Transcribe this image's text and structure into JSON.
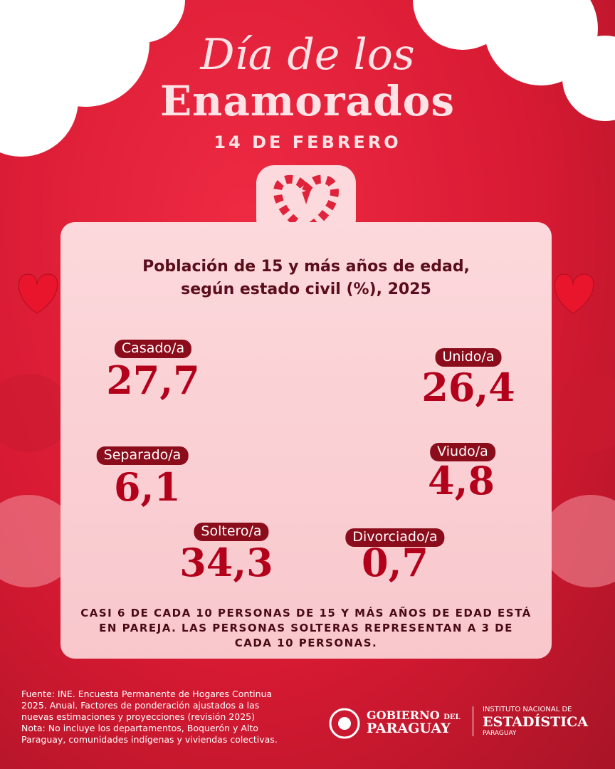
{
  "header": {
    "script_title": "Día de los",
    "title": "Enamorados",
    "date": "14 DE FEBRERO"
  },
  "card": {
    "title_lines": [
      "Población de 15 y más años de edad,",
      "según estado civil (%), 2025"
    ],
    "stats": [
      {
        "label": "Casado/a",
        "value": "27,7"
      },
      {
        "label": "Unido/a",
        "value": "26,4"
      },
      {
        "label": "Separado/a",
        "value": "6,1"
      },
      {
        "label": "Viudo/a",
        "value": "4,8"
      },
      {
        "label": "Soltero/a",
        "value": "34,3"
      },
      {
        "label": "Divorciado/a",
        "value": "0,7"
      }
    ],
    "summary_lines": [
      "CASI 6 DE CADA 10 PERSONAS DE 15 Y MÁS AÑOS DE EDAD ESTÁ",
      "EN PAREJA. LAS PERSONAS SOLTERAS REPRESENTAN A 3 DE",
      "CADA 10 PERSONAS."
    ]
  },
  "footer": {
    "source_lines": [
      "Fuente: INE. Encuesta Permanente de Hogares Continua",
      "2025. Anual. Factores de ponderación ajustados a las",
      "nuevas estimaciones y proyecciones (revisión 2025)",
      "Nota: No incluye los departamentos, Boquerón y Alto",
      "Paraguay, comunidades indígenas y viviendas colectivas."
    ],
    "gov_logo": {
      "line1": "GOBIERNO",
      "del": "DEL",
      "line2": "PARAGUAY"
    },
    "ine_logo": {
      "line1": "INSTITUTO NACIONAL DE",
      "line2": "ESTADÍSTICA",
      "line3": "PARAGUAY"
    }
  }
}
